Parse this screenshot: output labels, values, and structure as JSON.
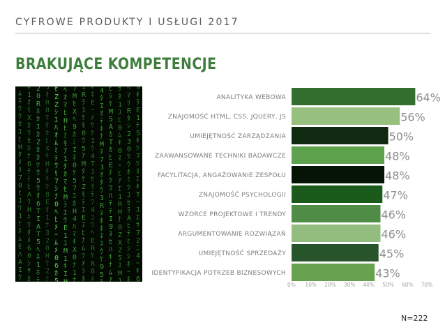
{
  "header": {
    "subtitle": "CYFROWE PRODUKTY I USŁUGI 2017",
    "title": "BRAKUJĄCE KOMPETENCJE"
  },
  "image": {
    "icon": "matrix-code-rain-image"
  },
  "footer": {
    "sample": "N=222"
  },
  "chart_data": {
    "type": "bar",
    "orientation": "horizontal",
    "categories": [
      "ANALITYKA WEBOWA",
      "ZNAJOMOŚĆ HTML, CSS, JQUERY, JS",
      "UMIEJĘTNOŚĆ ZARZĄDZANIA",
      "ZAAWANSOWANE TECHNIKI BADAWCZE",
      "FACYLITACJA, ANGAŻOWANIE ZESPOŁU",
      "ZNAJOMOŚĆ PSYCHOLOGII",
      "WZORCE PROJEKTOWE I TRENDY",
      "ARGUMENTOWANIE ROZWIĄZAŃ",
      "UMIEJĘTNOŚĆ SPRZEDAŻY",
      "IDENTYFIKACJA POTRZEB BIZNESOWYCH"
    ],
    "values": [
      64,
      56,
      50,
      48,
      48,
      47,
      46,
      46,
      45,
      43
    ],
    "value_labels": [
      "64%",
      "56%",
      "50%",
      "48%",
      "48%",
      "47%",
      "46%",
      "46%",
      "45%",
      "43%"
    ],
    "colors": [
      "#356f30",
      "#97c07f",
      "#0f2a10",
      "#5ea24e",
      "#051405",
      "#1a5b1c",
      "#4f8c45",
      "#92bd7e",
      "#27542a",
      "#67a34f"
    ],
    "xlim": [
      0,
      70
    ],
    "xticks": [
      "0%",
      "10%",
      "20%",
      "30%",
      "40%",
      "50%",
      "60%",
      "70%"
    ],
    "grid": false
  }
}
